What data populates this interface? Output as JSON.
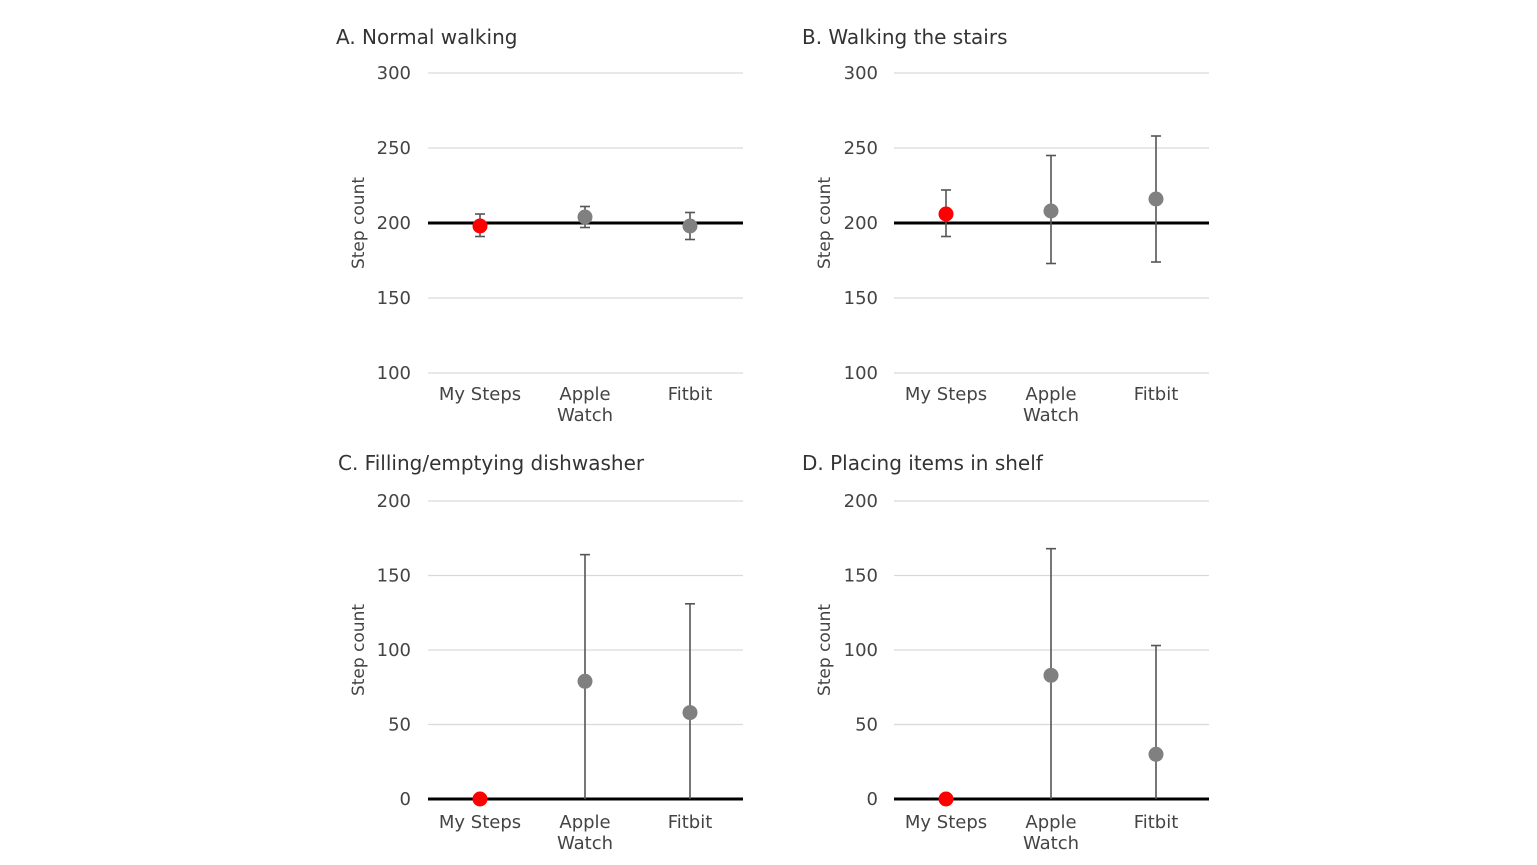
{
  "chart_data": [
    {
      "type": "scatter",
      "title": "A. Normal walking",
      "xlabel": "",
      "ylabel": "Step count",
      "ylim": [
        100,
        300
      ],
      "yticks": [
        100,
        150,
        200,
        250,
        300
      ],
      "reference_line": 200,
      "categories": [
        "My Steps",
        "Apple Watch",
        "Fitbit"
      ],
      "points": [
        {
          "category": "My Steps",
          "value": 198,
          "err_low": 191,
          "err_high": 206,
          "color": "#ff0000"
        },
        {
          "category": "Apple Watch",
          "value": 204,
          "err_low": 197,
          "err_high": 211,
          "color": "#808080"
        },
        {
          "category": "Fitbit",
          "value": 198,
          "err_low": 189,
          "err_high": 207,
          "color": "#808080"
        }
      ]
    },
    {
      "type": "scatter",
      "title": "B. Walking the stairs",
      "xlabel": "",
      "ylabel": "Step count",
      "ylim": [
        100,
        300
      ],
      "yticks": [
        100,
        150,
        200,
        250,
        300
      ],
      "reference_line": 200,
      "categories": [
        "My Steps",
        "Apple Watch",
        "Fitbit"
      ],
      "points": [
        {
          "category": "My Steps",
          "value": 206,
          "err_low": 191,
          "err_high": 222,
          "color": "#ff0000"
        },
        {
          "category": "Apple Watch",
          "value": 208,
          "err_low": 173,
          "err_high": 245,
          "color": "#808080"
        },
        {
          "category": "Fitbit",
          "value": 216,
          "err_low": 174,
          "err_high": 258,
          "color": "#808080"
        }
      ]
    },
    {
      "type": "scatter",
      "title": "C. Filling/emptying dishwasher",
      "xlabel": "",
      "ylabel": "Step count",
      "ylim": [
        0,
        200
      ],
      "yticks": [
        0,
        50,
        100,
        150,
        200
      ],
      "reference_line": 0,
      "categories": [
        "My Steps",
        "Apple Watch",
        "Fitbit"
      ],
      "points": [
        {
          "category": "My Steps",
          "value": 0,
          "err_low": 0,
          "err_high": 0,
          "color": "#ff0000"
        },
        {
          "category": "Apple Watch",
          "value": 79,
          "err_low": 0,
          "err_high": 164,
          "color": "#808080"
        },
        {
          "category": "Fitbit",
          "value": 58,
          "err_low": 0,
          "err_high": 131,
          "color": "#808080"
        }
      ]
    },
    {
      "type": "scatter",
      "title": "D. Placing items in shelf",
      "xlabel": "",
      "ylabel": "Step count",
      "ylim": [
        0,
        200
      ],
      "yticks": [
        0,
        50,
        100,
        150,
        200
      ],
      "reference_line": 0,
      "categories": [
        "My Steps",
        "Apple Watch",
        "Fitbit"
      ],
      "points": [
        {
          "category": "My Steps",
          "value": 0,
          "err_low": 0,
          "err_high": 0,
          "color": "#ff0000"
        },
        {
          "category": "Apple Watch",
          "value": 83,
          "err_low": 0,
          "err_high": 168,
          "color": "#808080"
        },
        {
          "category": "Fitbit",
          "value": 30,
          "err_low": 0,
          "err_high": 103,
          "color": "#808080"
        }
      ]
    }
  ]
}
